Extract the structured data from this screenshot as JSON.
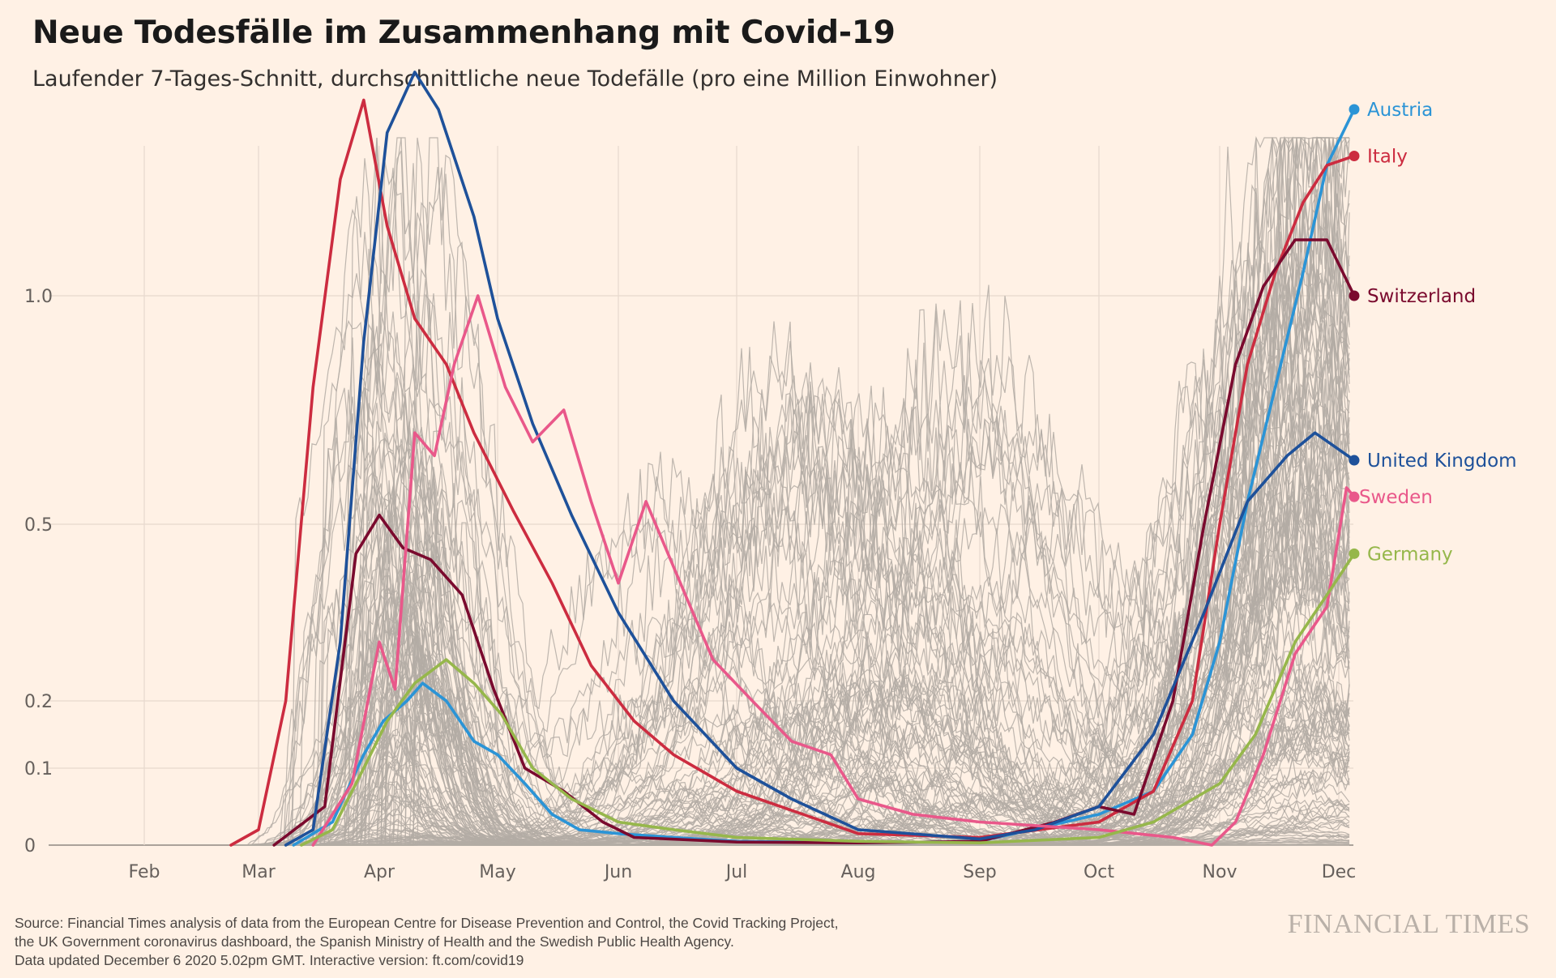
{
  "title": "Neue Todesfälle im Zusammenhang mit Covid-19",
  "subtitle": "Laufender 7-Tages-Schnitt, durchschnittliche neue Todefälle (pro eine Million Einwohner)",
  "footer": {
    "line1": "Source: Financial Times analysis of data from the European Centre for Disease Prevention and Control, the Covid Tracking Project,",
    "line2": "the UK Government coronavirus dashboard, the Spanish Ministry of Health and the Swedish Public Health Agency.",
    "line3": "Data updated December 6 2020 5.02pm GMT. Interactive version: ft.com/covid19"
  },
  "brand": "FINANCIAL TIMES",
  "chart_data": {
    "type": "line",
    "title": "Neue Todesfälle im Zusammenhang mit Covid-19",
    "subtitle": "Laufender 7-Tages-Schnitt, durchschnittliche neue Todefälle (pro eine Million Einwohner)",
    "x_ticks": [
      "Feb",
      "Mar",
      "Apr",
      "May",
      "Jun",
      "Jul",
      "Aug",
      "Sep",
      "Oct",
      "Nov",
      "Dec"
    ],
    "y_ticks": [
      {
        "value": 0,
        "label": "0"
      },
      {
        "value": 0.1,
        "label": "0.1"
      },
      {
        "value": 0.2,
        "label": "0.2"
      },
      {
        "value": 0.5,
        "label": "0.5"
      },
      {
        "value": 1.0,
        "label": "1.0"
      }
    ],
    "y_scale": "compressed (non-linear)",
    "grid": true,
    "background_series_color": "#b3aba4",
    "series": [
      {
        "name": "Austria",
        "color": "#2b94d6",
        "points": [
          [
            "Mar 10",
            0
          ],
          [
            "Mar 20",
            0.03
          ],
          [
            "Mar 28",
            0.12
          ],
          [
            "Apr 2",
            0.17
          ],
          [
            "Apr 8",
            0.2
          ],
          [
            "Apr 12",
            0.23
          ],
          [
            "Apr 18",
            0.2
          ],
          [
            "Apr 25",
            0.14
          ],
          [
            "May 1",
            0.12
          ],
          [
            "May 8",
            0.08
          ],
          [
            "May 15",
            0.04
          ],
          [
            "May 22",
            0.02
          ],
          [
            "Jun 1",
            0.015
          ],
          [
            "Jun 15",
            0.01
          ],
          [
            "Jul 1",
            0.005
          ],
          [
            "Aug 1",
            0.003
          ],
          [
            "Sep 1",
            0.005
          ],
          [
            "Oct 1",
            0.04
          ],
          [
            "Oct 15",
            0.07
          ],
          [
            "Oct 25",
            0.15
          ],
          [
            "Nov 1",
            0.3
          ],
          [
            "Nov 8",
            0.55
          ],
          [
            "Nov 15",
            0.8
          ],
          [
            "Nov 22",
            1.05
          ],
          [
            "Nov 28",
            1.28
          ],
          [
            "Dec 5",
            1.4
          ]
        ]
      },
      {
        "name": "Italy",
        "color": "#cc2c40",
        "points": [
          [
            "Feb 23",
            0
          ],
          [
            "Mar 1",
            0.02
          ],
          [
            "Mar 8",
            0.2
          ],
          [
            "Mar 15",
            0.8
          ],
          [
            "Mar 22",
            1.25
          ],
          [
            "Mar 28",
            1.42
          ],
          [
            "Apr 3",
            1.15
          ],
          [
            "Apr 10",
            0.95
          ],
          [
            "Apr 18",
            0.85
          ],
          [
            "Apr 25",
            0.7
          ],
          [
            "May 5",
            0.53
          ],
          [
            "May 15",
            0.4
          ],
          [
            "May 25",
            0.26
          ],
          [
            "Jun 5",
            0.17
          ],
          [
            "Jun 15",
            0.12
          ],
          [
            "Jul 1",
            0.07
          ],
          [
            "Aug 1",
            0.015
          ],
          [
            "Sep 1",
            0.01
          ],
          [
            "Oct 1",
            0.03
          ],
          [
            "Oct 15",
            0.07
          ],
          [
            "Oct 25",
            0.2
          ],
          [
            "Nov 1",
            0.5
          ],
          [
            "Nov 8",
            0.85
          ],
          [
            "Nov 15",
            1.05
          ],
          [
            "Nov 22",
            1.2
          ],
          [
            "Nov 28",
            1.28
          ],
          [
            "Dec 5",
            1.3
          ]
        ]
      },
      {
        "name": "Switzerland",
        "color": "#7a0a2e",
        "points": [
          [
            "Mar 5",
            0
          ],
          [
            "Mar 18",
            0.05
          ],
          [
            "Mar 26",
            0.45
          ],
          [
            "Apr 1",
            0.52
          ],
          [
            "Apr 7",
            0.46
          ],
          [
            "Apr 14",
            0.44
          ],
          [
            "Apr 22",
            0.38
          ],
          [
            "Apr 30",
            0.22
          ],
          [
            "May 8",
            0.1
          ],
          [
            "May 18",
            0.07
          ],
          [
            "May 28",
            0.03
          ],
          [
            "Jun 5",
            0.01
          ],
          [
            "Jul 1",
            0.004
          ],
          [
            "Aug 1",
            0.003
          ],
          [
            "Sep 1",
            0.005
          ],
          [
            "Sep 20",
            0.03
          ],
          [
            "Oct 1",
            0.05
          ],
          [
            "Oct 10",
            0.04
          ],
          [
            "Oct 20",
            0.2
          ],
          [
            "Oct 28",
            0.5
          ],
          [
            "Nov 5",
            0.85
          ],
          [
            "Nov 12",
            1.02
          ],
          [
            "Nov 20",
            1.12
          ],
          [
            "Nov 28",
            1.12
          ],
          [
            "Dec 5",
            1.0
          ]
        ]
      },
      {
        "name": "United Kingdom",
        "color": "#1e519a",
        "points": [
          [
            "Mar 8",
            0
          ],
          [
            "Mar 15",
            0.02
          ],
          [
            "Mar 22",
            0.3
          ],
          [
            "Mar 28",
            0.9
          ],
          [
            "Apr 3",
            1.35
          ],
          [
            "Apr 10",
            1.48
          ],
          [
            "Apr 16",
            1.4
          ],
          [
            "Apr 25",
            1.17
          ],
          [
            "May 1",
            0.95
          ],
          [
            "May 10",
            0.72
          ],
          [
            "May 20",
            0.52
          ],
          [
            "Jun 1",
            0.35
          ],
          [
            "Jun 15",
            0.2
          ],
          [
            "Jul 1",
            0.1
          ],
          [
            "Jul 15",
            0.06
          ],
          [
            "Aug 1",
            0.02
          ],
          [
            "Sep 1",
            0.008
          ],
          [
            "Sep 15",
            0.02
          ],
          [
            "Oct 1",
            0.05
          ],
          [
            "Oct 15",
            0.15
          ],
          [
            "Oct 28",
            0.35
          ],
          [
            "Nov 8",
            0.55
          ],
          [
            "Nov 18",
            0.65
          ],
          [
            "Nov 25",
            0.7
          ],
          [
            "Dec 5",
            0.64
          ]
        ]
      },
      {
        "name": "Sweden",
        "color": "#e9588a",
        "points": [
          [
            "Mar 15",
            0
          ],
          [
            "Mar 25",
            0.08
          ],
          [
            "Apr 1",
            0.3
          ],
          [
            "Apr 5",
            0.22
          ],
          [
            "Apr 10",
            0.7
          ],
          [
            "Apr 15",
            0.65
          ],
          [
            "Apr 20",
            0.85
          ],
          [
            "Apr 26",
            1.0
          ],
          [
            "May 3",
            0.8
          ],
          [
            "May 10",
            0.68
          ],
          [
            "May 18",
            0.75
          ],
          [
            "May 25",
            0.55
          ],
          [
            "Jun 1",
            0.4
          ],
          [
            "Jun 8",
            0.55
          ],
          [
            "Jun 18",
            0.38
          ],
          [
            "Jun 25",
            0.27
          ],
          [
            "Jul 5",
            0.2
          ],
          [
            "Jul 15",
            0.14
          ],
          [
            "Jul 25",
            0.12
          ],
          [
            "Aug 1",
            0.06
          ],
          [
            "Aug 15",
            0.04
          ],
          [
            "Sep 1",
            0.03
          ],
          [
            "Oct 1",
            0.02
          ],
          [
            "Oct 20",
            0.01
          ],
          [
            "Oct 30",
            0.0
          ],
          [
            "Nov 5",
            0.03
          ],
          [
            "Nov 12",
            0.12
          ],
          [
            "Nov 20",
            0.28
          ],
          [
            "Nov 28",
            0.36
          ],
          [
            "Dec 3",
            0.58
          ],
          [
            "Dec 5",
            0.56
          ]
        ]
      },
      {
        "name": "Germany",
        "color": "#96b74b",
        "points": [
          [
            "Mar 12",
            0
          ],
          [
            "Mar 20",
            0.02
          ],
          [
            "Mar 28",
            0.1
          ],
          [
            "Apr 3",
            0.17
          ],
          [
            "Apr 10",
            0.23
          ],
          [
            "Apr 18",
            0.27
          ],
          [
            "Apr 25",
            0.23
          ],
          [
            "May 2",
            0.18
          ],
          [
            "May 10",
            0.1
          ],
          [
            "May 20",
            0.06
          ],
          [
            "Jun 1",
            0.03
          ],
          [
            "Jun 15",
            0.02
          ],
          [
            "Jul 1",
            0.01
          ],
          [
            "Aug 1",
            0.005
          ],
          [
            "Sep 1",
            0.003
          ],
          [
            "Oct 1",
            0.01
          ],
          [
            "Oct 15",
            0.03
          ],
          [
            "Nov 1",
            0.08
          ],
          [
            "Nov 10",
            0.15
          ],
          [
            "Nov 20",
            0.3
          ],
          [
            "Nov 28",
            0.38
          ],
          [
            "Dec 5",
            0.45
          ]
        ]
      }
    ]
  }
}
